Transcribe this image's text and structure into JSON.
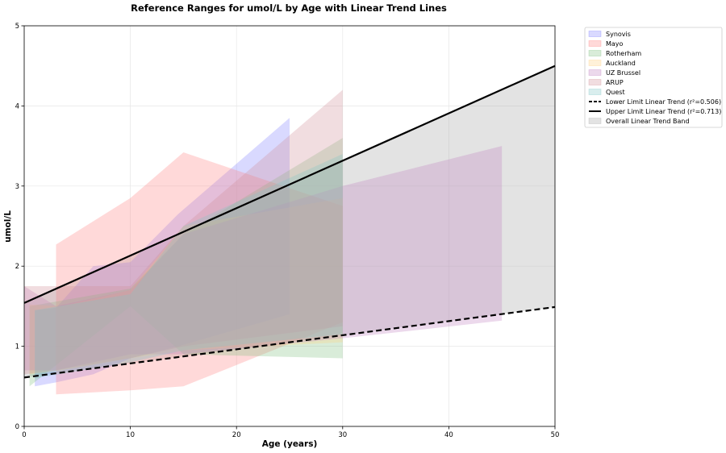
{
  "chart_data": {
    "type": "area",
    "title": "Reference Ranges for umol/L by Age with Linear Trend Lines",
    "xlabel": "Age (years)",
    "ylabel": "umol/L",
    "xlim": [
      0,
      50
    ],
    "ylim": [
      0,
      5
    ],
    "xticks": [
      0,
      10,
      20,
      30,
      40,
      50
    ],
    "yticks": [
      0,
      1,
      2,
      3,
      4,
      5
    ],
    "grid": true,
    "legend_position": "outside-top-right",
    "series": [
      {
        "name": "Synovis",
        "color": "#8080ff",
        "x": [
          1,
          3,
          6.5,
          10,
          14.5,
          25
        ],
        "lower": [
          0.5,
          0.55,
          0.65,
          0.85,
          1.0,
          1.4
        ],
        "upper": [
          1.45,
          1.48,
          2.0,
          2.05,
          2.65,
          3.85
        ]
      },
      {
        "name": "Mayo",
        "color": "#ff8080",
        "x": [
          3,
          10,
          15,
          30
        ],
        "lower": [
          0.4,
          0.45,
          0.5,
          1.3
        ],
        "upper": [
          2.27,
          2.85,
          3.42,
          2.75
        ]
      },
      {
        "name": "Rotherham",
        "color": "#80c080",
        "x": [
          0.5,
          10,
          15,
          30
        ],
        "lower": [
          0.5,
          1.5,
          0.9,
          0.85
        ],
        "upper": [
          1.5,
          1.72,
          2.4,
          3.6
        ]
      },
      {
        "name": "Auckland",
        "color": "#ffd080",
        "x": [
          0.5,
          3.5,
          10,
          15,
          30
        ],
        "lower": [
          0.65,
          0.7,
          0.85,
          0.95,
          1.05
        ],
        "upper": [
          1.52,
          1.5,
          1.7,
          2.5,
          2.85
        ]
      },
      {
        "name": "UZ Brussel",
        "color": "#c080c0",
        "x": [
          0,
          3,
          10,
          15,
          30,
          45
        ],
        "lower": [
          0.7,
          0.7,
          0.9,
          0.9,
          1.1,
          1.32
        ],
        "upper": [
          1.75,
          1.5,
          1.7,
          2.4,
          3.0,
          3.5
        ]
      },
      {
        "name": "ARUP",
        "color": "#d09098",
        "x": [
          0,
          3,
          10,
          15,
          30
        ],
        "lower": [
          0.65,
          0.7,
          0.85,
          1.0,
          1.25
        ],
        "upper": [
          1.75,
          1.75,
          1.75,
          2.5,
          4.2
        ]
      },
      {
        "name": "Quest",
        "color": "#80c8c8",
        "x": [
          1,
          10,
          15,
          30
        ],
        "lower": [
          0.6,
          0.8,
          0.95,
          1.15
        ],
        "upper": [
          1.45,
          1.65,
          2.5,
          3.4
        ]
      }
    ],
    "trend_lines": [
      {
        "name": "Lower Limit Linear Trend (r²=0.506)",
        "style": "dashed",
        "color": "#000000",
        "x": [
          0,
          50
        ],
        "y": [
          0.61,
          1.49
        ]
      },
      {
        "name": "Upper Limit Linear Trend (r²=0.713)",
        "style": "solid",
        "color": "#000000",
        "x": [
          0,
          50
        ],
        "y": [
          1.54,
          4.5
        ]
      }
    ],
    "trend_band": {
      "name": "Overall Linear Trend Band",
      "color": "#b0b0b0"
    }
  }
}
